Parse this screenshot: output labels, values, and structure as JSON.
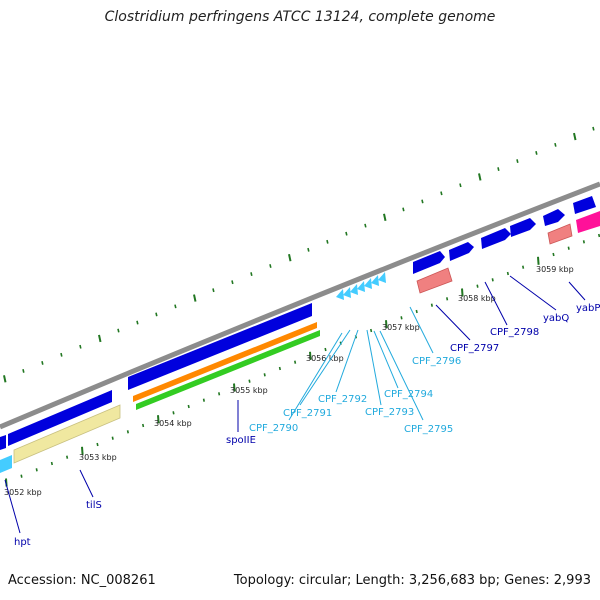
{
  "title": "Clostridium perfringens ATCC 13124, complete genome",
  "footer": {
    "accession": "Accession: NC_008261",
    "summary": "Topology: circular; Length: 3,256,683 bp; Genes: 2,993"
  },
  "colors": {
    "backbone": "#8c8c8c",
    "cds": "#0000dd",
    "trna": "#44ccff",
    "rrna_like": "#f0e8a0",
    "orange": "#ff8800",
    "green": "#33cc22",
    "salmon": "#f08080",
    "magenta": "#ff1199",
    "tick": "#227722",
    "label_dark": "#0000aa",
    "label_light": "#22aadd"
  },
  "ticks": [
    {
      "label": "3052 kbp"
    },
    {
      "label": "3053 kbp"
    },
    {
      "label": "3054 kbp"
    },
    {
      "label": "3055 kbp"
    },
    {
      "label": "3056 kbp"
    },
    {
      "label": "3057 kbp"
    },
    {
      "label": "3058 kbp"
    },
    {
      "label": "3059 kbp"
    }
  ],
  "genes": [
    {
      "label": "hpt"
    },
    {
      "label": "tilS"
    },
    {
      "label": "spoIIE"
    },
    {
      "label": "CPF_2790"
    },
    {
      "label": "CPF_2791"
    },
    {
      "label": "CPF_2792"
    },
    {
      "label": "CPF_2793"
    },
    {
      "label": "CPF_2794"
    },
    {
      "label": "CPF_2795"
    },
    {
      "label": "CPF_2796"
    },
    {
      "label": "CPF_2797"
    },
    {
      "label": "CPF_2798"
    },
    {
      "label": "yabQ"
    },
    {
      "label": "yabP"
    }
  ]
}
